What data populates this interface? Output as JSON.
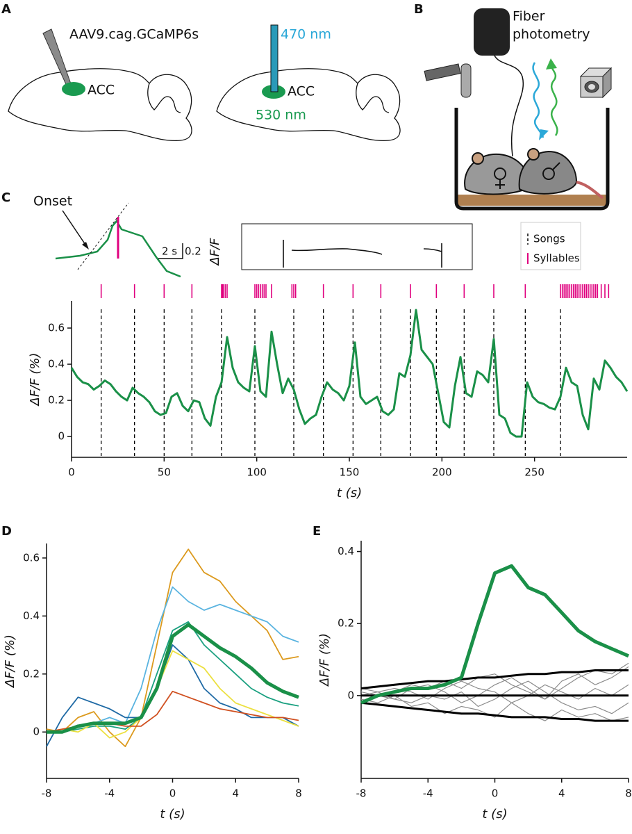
{
  "panel_labels": [
    "A",
    "B",
    "C",
    "D",
    "E"
  ],
  "diagram_a": {
    "injection": "AAV9.cag.GCaMP6s",
    "region_left": "ACC",
    "region_right": "ACC",
    "excitation": "470 nm",
    "emission": "530 nm"
  },
  "diagram_b": {
    "device": [
      "Fiber",
      "photometry"
    ]
  },
  "chart_data": [
    {
      "type": "line",
      "xlabel": "t (s)",
      "ylabel": "ΔF/F (%)",
      "xlim": [
        0,
        300
      ],
      "xticks": [
        0,
        50,
        100,
        150,
        200,
        250
      ],
      "ylim": [
        -0.115,
        0.75
      ],
      "yticks": [
        0,
        0.2,
        0.4,
        0.6
      ],
      "x": [
        0,
        3,
        6,
        9,
        12,
        15,
        18,
        21,
        24,
        27,
        30,
        33,
        36,
        39,
        42,
        45,
        48,
        51,
        54,
        57,
        60,
        63,
        66,
        69,
        72,
        75,
        78,
        81,
        84,
        87,
        90,
        93,
        96,
        99,
        102,
        105,
        108,
        111,
        114,
        117,
        120,
        123,
        126,
        129,
        132,
        135,
        138,
        141,
        144,
        147,
        150,
        153,
        156,
        159,
        162,
        165,
        168,
        171,
        174,
        177,
        180,
        183,
        186,
        189,
        192,
        195,
        198,
        201,
        204,
        207,
        210,
        213,
        216,
        219,
        222,
        225,
        228,
        231,
        234,
        237,
        240,
        243,
        246,
        249,
        252,
        255,
        258,
        261,
        264,
        267,
        270,
        273,
        276,
        279,
        282,
        285,
        288,
        291,
        294,
        297,
        300
      ],
      "series": [
        {
          "color": "#1a9048",
          "values": [
            0.38,
            0.33,
            0.3,
            0.29,
            0.26,
            0.28,
            0.31,
            0.29,
            0.25,
            0.22,
            0.2,
            0.27,
            0.24,
            0.22,
            0.19,
            0.14,
            0.12,
            0.13,
            0.22,
            0.24,
            0.17,
            0.14,
            0.2,
            0.19,
            0.1,
            0.06,
            0.22,
            0.3,
            0.55,
            0.38,
            0.3,
            0.27,
            0.25,
            0.5,
            0.25,
            0.22,
            0.58,
            0.4,
            0.24,
            0.32,
            0.26,
            0.15,
            0.07,
            0.1,
            0.12,
            0.22,
            0.3,
            0.26,
            0.24,
            0.2,
            0.28,
            0.52,
            0.22,
            0.18,
            0.2,
            0.22,
            0.14,
            0.12,
            0.15,
            0.35,
            0.33,
            0.45,
            0.7,
            0.48,
            0.44,
            0.4,
            0.24,
            0.08,
            0.05,
            0.28,
            0.44,
            0.24,
            0.22,
            0.36,
            0.34,
            0.3,
            0.54,
            0.12,
            0.1,
            0.02,
            0.0,
            0.0,
            0.3,
            0.22,
            0.19,
            0.18,
            0.16,
            0.15,
            0.22,
            0.38,
            0.3,
            0.28,
            0.12,
            0.04,
            0.32,
            0.26,
            0.42,
            0.38,
            0.33,
            0.3,
            0.25
          ]
        }
      ],
      "songs": [
        16,
        34,
        50,
        65,
        81,
        99,
        120,
        136,
        152,
        167,
        183,
        197,
        212,
        228,
        245,
        264
      ],
      "syllables": [
        16,
        34,
        50,
        65,
        81,
        81.5,
        82,
        83,
        84,
        99,
        100,
        101,
        102,
        103,
        104,
        105,
        108,
        119,
        120,
        121,
        136,
        152,
        167,
        183,
        197,
        212,
        228,
        245,
        264,
        265,
        266,
        267,
        268,
        269,
        270,
        271,
        272,
        273,
        274,
        275,
        276,
        277,
        278,
        279,
        280,
        281,
        282,
        283,
        284,
        286,
        288,
        290
      ],
      "song_color": "#000000",
      "syllable_color": "#e0007f",
      "legend": [
        "Songs",
        "Syllables"
      ],
      "inset": {
        "annotation": "Onset",
        "time_scale": "2 s",
        "value_scale": "0.2",
        "value_label": "ΔF/F"
      }
    },
    {
      "type": "line",
      "xlabel": "t (s)",
      "ylabel": "ΔF/F (%)",
      "xlim": [
        -8,
        8
      ],
      "xticks": [
        -8,
        -4,
        0,
        4,
        8
      ],
      "ylim": [
        -0.16,
        0.65
      ],
      "yticks": [
        0,
        0.2,
        0.4,
        0.6
      ],
      "x": [
        -8,
        -7,
        -6,
        -5,
        -4,
        -3,
        -2,
        -1,
        0,
        1,
        2,
        3,
        4,
        5,
        6,
        7,
        8
      ],
      "series": [
        {
          "color": "#dc9a1e",
          "width": 1.8,
          "values": [
            0.01,
            0.0,
            0.05,
            0.07,
            0.0,
            -0.05,
            0.05,
            0.3,
            0.55,
            0.63,
            0.55,
            0.52,
            0.45,
            0.4,
            0.35,
            0.25,
            0.26
          ]
        },
        {
          "color": "#5ab4e0",
          "width": 1.8,
          "values": [
            0,
            0,
            0.02,
            0.03,
            0.05,
            0.03,
            0.15,
            0.35,
            0.5,
            0.45,
            0.42,
            0.44,
            0.42,
            0.4,
            0.38,
            0.33,
            0.31
          ]
        },
        {
          "color": "#1aa080",
          "width": 1.8,
          "values": [
            0,
            0,
            0.01,
            0.02,
            0.02,
            0.01,
            0.05,
            0.2,
            0.35,
            0.38,
            0.3,
            0.25,
            0.2,
            0.15,
            0.12,
            0.1,
            0.09
          ]
        },
        {
          "color": "#1f6aa5",
          "width": 1.8,
          "values": [
            -0.05,
            0.05,
            0.12,
            0.1,
            0.08,
            0.05,
            0.05,
            0.15,
            0.3,
            0.25,
            0.15,
            0.1,
            0.08,
            0.05,
            0.05,
            0.05,
            0.02
          ]
        },
        {
          "color": "#ece040",
          "width": 1.8,
          "values": [
            0,
            0.01,
            0.0,
            0.03,
            -0.02,
            0.0,
            0.05,
            0.15,
            0.28,
            0.25,
            0.22,
            0.15,
            0.1,
            0.08,
            0.06,
            0.04,
            0.02
          ]
        },
        {
          "color": "#d05020",
          "width": 1.8,
          "values": [
            0,
            0.01,
            0.02,
            0.03,
            0.03,
            0.02,
            0.02,
            0.06,
            0.14,
            0.12,
            0.1,
            0.08,
            0.07,
            0.06,
            0.05,
            0.05,
            0.04
          ]
        },
        {
          "color": "#1a9048",
          "width": 5,
          "values": [
            0,
            0,
            0.02,
            0.03,
            0.03,
            0.03,
            0.05,
            0.15,
            0.33,
            0.37,
            0.33,
            0.29,
            0.26,
            0.22,
            0.17,
            0.14,
            0.12
          ]
        }
      ]
    },
    {
      "type": "line",
      "xlabel": "t (s)",
      "ylabel": "ΔF/F (%)",
      "xlim": [
        -8,
        8
      ],
      "xticks": [
        -8,
        -4,
        0,
        4,
        8
      ],
      "ylim": [
        -0.23,
        0.43
      ],
      "yticks": [
        0,
        0.2,
        0.4
      ],
      "x": [
        -8,
        -7,
        -6,
        -5,
        -4,
        -3,
        -2,
        -1,
        0,
        1,
        2,
        3,
        4,
        5,
        6,
        7,
        8
      ],
      "series": [
        {
          "color": "#8c8c8c",
          "width": 1.2,
          "values": [
            0.01,
            0.0,
            -0.01,
            0.02,
            0.03,
            0.01,
            -0.02,
            0.0,
            0.03,
            0.05,
            0.02,
            -0.01,
            0.04,
            0.06,
            0.03,
            0.05,
            0.08
          ]
        },
        {
          "color": "#8c8c8c",
          "width": 1.2,
          "values": [
            -0.01,
            -0.02,
            0.0,
            -0.03,
            -0.02,
            -0.05,
            -0.03,
            -0.04,
            -0.06,
            -0.02,
            -0.05,
            -0.07,
            -0.04,
            -0.06,
            -0.05,
            -0.07,
            -0.06
          ]
        },
        {
          "color": "#8c8c8c",
          "width": 1.2,
          "values": [
            0.0,
            0.01,
            0.02,
            0.01,
            -0.01,
            0.02,
            0.04,
            0.02,
            0.01,
            -0.02,
            0.0,
            0.03,
            0.01,
            -0.01,
            0.02,
            0.0,
            0.03
          ]
        },
        {
          "color": "#8c8c8c",
          "width": 1.2,
          "values": [
            0.02,
            0.01,
            -0.01,
            -0.02,
            0.0,
            -0.01,
            0.01,
            -0.03,
            -0.01,
            0.02,
            0.04,
            0.01,
            -0.02,
            -0.04,
            -0.03,
            -0.05,
            -0.02
          ]
        },
        {
          "color": "#8c8c8c",
          "width": 1.2,
          "values": [
            -0.02,
            0.0,
            0.01,
            0.03,
            0.02,
            0.04,
            0.02,
            0.05,
            0.06,
            0.03,
            0.01,
            -0.01,
            0.02,
            0.05,
            0.07,
            0.06,
            0.09
          ]
        },
        {
          "color": "#000000",
          "width": 3,
          "values": [
            0.02,
            0.025,
            0.03,
            0.035,
            0.04,
            0.04,
            0.045,
            0.05,
            0.05,
            0.055,
            0.06,
            0.06,
            0.065,
            0.065,
            0.07,
            0.07,
            0.07
          ]
        },
        {
          "color": "#000000",
          "width": 3,
          "values": [
            0,
            0,
            0,
            0,
            0,
            0,
            0,
            0,
            0,
            0,
            0,
            0,
            0,
            0,
            0,
            0,
            0
          ]
        },
        {
          "color": "#000000",
          "width": 3,
          "values": [
            -0.02,
            -0.025,
            -0.03,
            -0.035,
            -0.04,
            -0.045,
            -0.05,
            -0.05,
            -0.055,
            -0.06,
            -0.06,
            -0.06,
            -0.065,
            -0.065,
            -0.07,
            -0.07,
            -0.07
          ]
        },
        {
          "color": "#1a9048",
          "width": 5,
          "values": [
            -0.02,
            0.0,
            0.01,
            0.02,
            0.02,
            0.03,
            0.05,
            0.2,
            0.34,
            0.36,
            0.3,
            0.28,
            0.23,
            0.18,
            0.15,
            0.13,
            0.11
          ]
        }
      ]
    }
  ]
}
